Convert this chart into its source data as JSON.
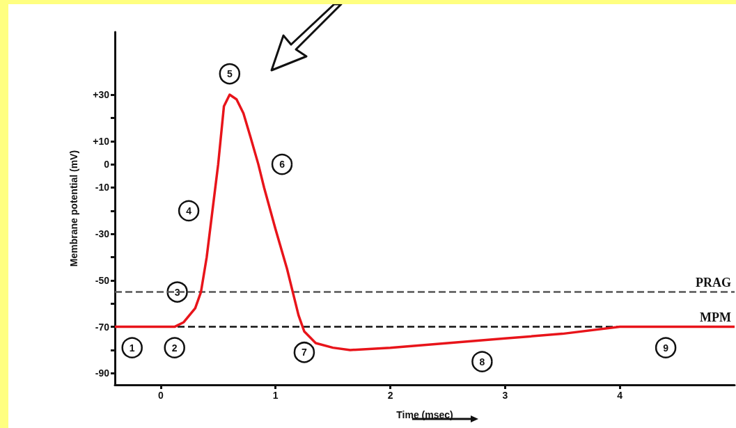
{
  "chart_data": {
    "type": "line",
    "xlabel": "Time (msec)",
    "ylabel": "Membrane potential (mV)",
    "x": [
      -0.4,
      0.12,
      0.2,
      0.3,
      0.35,
      0.4,
      0.45,
      0.5,
      0.55,
      0.6,
      0.66,
      0.72,
      0.78,
      0.85,
      0.9,
      1.0,
      1.1,
      1.15,
      1.2,
      1.25,
      1.35,
      1.5,
      1.65,
      2.0,
      2.5,
      3.0,
      3.5,
      4.0,
      5.0
    ],
    "series": [
      {
        "color": "#e8141a",
        "values": [
          -70,
          -70,
          -68,
          -62,
          -55,
          -40,
          -20,
          0,
          25,
          30,
          28,
          22,
          12,
          0,
          -10,
          -28,
          -45,
          -55,
          -65,
          -72,
          -77,
          -79,
          -80,
          -79,
          -77,
          -75,
          -73,
          -70,
          -70
        ]
      }
    ],
    "xlim": [
      -0.4,
      5
    ],
    "xticks": [
      0,
      1,
      2,
      3,
      4
    ],
    "ylim": [
      -95,
      57
    ],
    "yticks": [
      -90,
      {
        "value": -80,
        "label": null
      },
      -70,
      {
        "value": -60,
        "label": null
      },
      -50,
      {
        "value": -40,
        "label": null
      },
      -30,
      {
        "value": -20,
        "label": null
      },
      -10,
      0,
      {
        "value": 10,
        "label": "+10"
      },
      {
        "value": 20,
        "label": null
      },
      {
        "value": 30,
        "label": "+30"
      }
    ],
    "ref_lines": [
      {
        "axis": "y",
        "value": -55,
        "label": "PRAG",
        "color": "#555555",
        "line_style": "dashed"
      },
      {
        "axis": "y",
        "value": -70,
        "label": "MPM",
        "color": "#111111",
        "line_style": "dashed"
      }
    ],
    "annotations": [
      {
        "text": "1",
        "x": -0.25,
        "y": -70
      },
      {
        "text": "2",
        "x": 0.12,
        "y": -70
      },
      {
        "text": "3",
        "x": 0.35,
        "y": -55
      },
      {
        "text": "4",
        "x": 0.45,
        "y": -20
      },
      {
        "text": "5",
        "x": 0.6,
        "y": 30
      },
      {
        "text": "6",
        "x": 0.85,
        "y": 0
      },
      {
        "text": "7",
        "x": 1.25,
        "y": -72
      },
      {
        "text": "8",
        "x": 2.8,
        "y": -76
      },
      {
        "text": "9",
        "x": 4.4,
        "y": -70
      }
    ],
    "grid": false,
    "marker": "none",
    "line_style": "solid"
  }
}
